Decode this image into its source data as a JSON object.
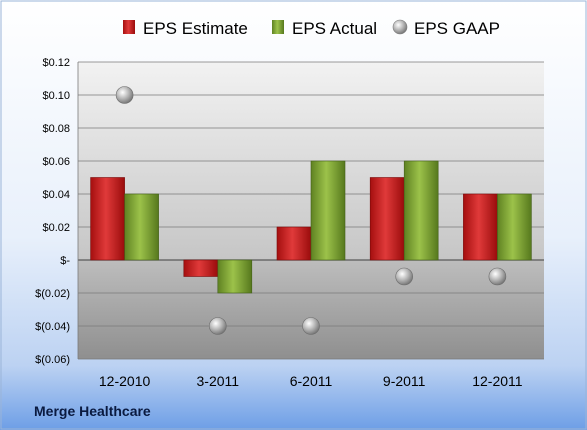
{
  "chart_data": {
    "type": "bar",
    "categories": [
      "12-2010",
      "3-2011",
      "6-2011",
      "9-2011",
      "12-2011"
    ],
    "series": [
      {
        "name": "EPS Estimate",
        "kind": "bar",
        "color": "#cc1f1f",
        "values": [
          0.05,
          -0.01,
          0.02,
          0.05,
          0.04
        ]
      },
      {
        "name": "EPS Actual",
        "kind": "bar",
        "color": "#7aa02e",
        "values": [
          0.04,
          -0.02,
          0.06,
          0.06,
          0.04
        ]
      },
      {
        "name": "EPS GAAP",
        "kind": "scatter",
        "color": "#a0a0a0",
        "values": [
          0.1,
          -0.04,
          -0.04,
          -0.01,
          -0.01
        ]
      }
    ],
    "ylim": [
      -0.06,
      0.12
    ],
    "yticks": [
      0.12,
      0.1,
      0.08,
      0.06,
      0.04,
      0.02,
      0,
      -0.02,
      -0.04,
      -0.06
    ],
    "ytick_labels": [
      "$0.12",
      "$0.10",
      "$0.08",
      "$0.06",
      "$0.04",
      "$0.02",
      "$-",
      "$(0.02)",
      "$(0.04)",
      "$(0.06)"
    ],
    "grid": true,
    "legend_position": "top",
    "company": "Merge Healthcare"
  }
}
